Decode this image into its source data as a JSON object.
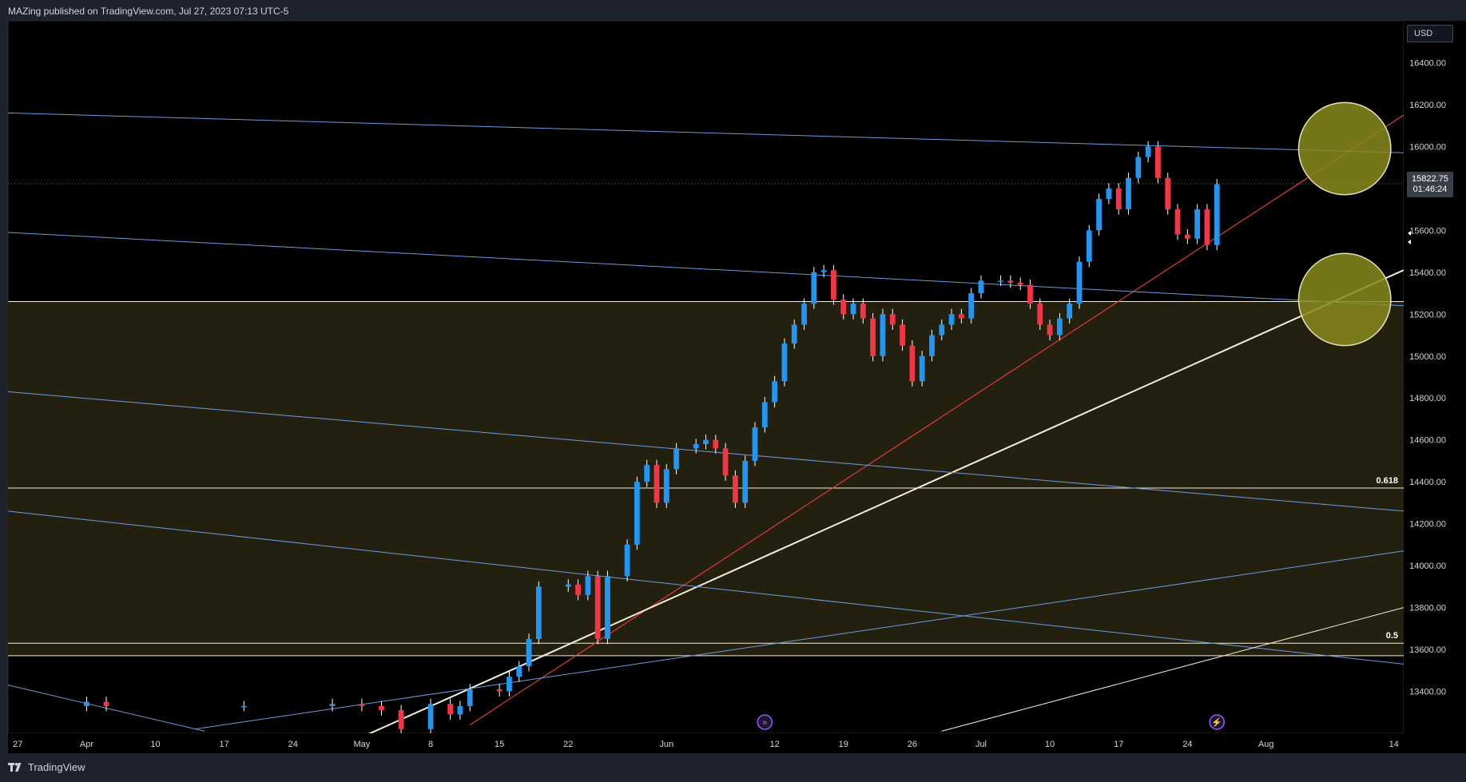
{
  "header": {
    "title": "MAZing published on TradingView.com, Jul 27, 2023 07:13 UTC-5"
  },
  "footer": {
    "brand": "TradingView"
  },
  "price_scale": {
    "currency": "USD",
    "last_price": "15822.75",
    "countdown": "01:46:24"
  },
  "colors": {
    "background": "#000000",
    "zone_fill": "#242010",
    "up_candle": "#2196f3",
    "down_candle": "#f23645",
    "channel_lines": "#6b9be0",
    "red_trendline": "#e03a3a",
    "white_trendline": "#f2eed8",
    "fib_lines": "#f2eed8",
    "circle_fill": "#8a8a1e"
  },
  "icons": [
    "tradingview-logo-icon",
    "forward-event-icon",
    "flash-event-icon"
  ],
  "chart_data": {
    "type": "candlestick",
    "title": "",
    "currency": "USD",
    "ylim": [
      13200,
      16600
    ],
    "y_ticks": [
      13400,
      13600,
      13800,
      14000,
      14200,
      14400,
      14600,
      14800,
      15000,
      15200,
      15400,
      15600,
      15800,
      16000,
      16200,
      16400
    ],
    "y_tick_labels": [
      "13400.00",
      "13600.00",
      "13800.00",
      "14000.00",
      "14200.00",
      "14400.00",
      "14600.00",
      "14800.00",
      "15000.00",
      "15200.00",
      "15400.00",
      "15600.00",
      "15800.00",
      "16000.00",
      "16200.00",
      "16400.00"
    ],
    "x_range": [
      "2023-03-26",
      "2023-08-15"
    ],
    "x_ticks": [
      {
        "date": "2023-03-27",
        "label": "27"
      },
      {
        "date": "2023-04-03",
        "label": "Apr"
      },
      {
        "date": "2023-04-10",
        "label": "10"
      },
      {
        "date": "2023-04-17",
        "label": "17"
      },
      {
        "date": "2023-04-24",
        "label": "24"
      },
      {
        "date": "2023-05-01",
        "label": "May"
      },
      {
        "date": "2023-05-08",
        "label": "8"
      },
      {
        "date": "2023-05-15",
        "label": "15"
      },
      {
        "date": "2023-05-22",
        "label": "22"
      },
      {
        "date": "2023-06-01",
        "label": "Jun"
      },
      {
        "date": "2023-06-12",
        "label": "12"
      },
      {
        "date": "2023-06-19",
        "label": "19"
      },
      {
        "date": "2023-06-26",
        "label": "26"
      },
      {
        "date": "2023-07-03",
        "label": "Jul"
      },
      {
        "date": "2023-07-10",
        "label": "10"
      },
      {
        "date": "2023-07-17",
        "label": "17"
      },
      {
        "date": "2023-07-24",
        "label": "24"
      },
      {
        "date": "2023-08-01",
        "label": "Aug"
      },
      {
        "date": "2023-08-14",
        "label": "14"
      }
    ],
    "last_price": 15822.75,
    "zone": {
      "from": 13570,
      "to": 15260
    },
    "fib_levels": [
      {
        "label": "0.618",
        "price": 14370
      },
      {
        "label": "0.5",
        "price": 13630
      }
    ],
    "horizontal_levels": [
      15260,
      13570
    ],
    "series": [
      {
        "name": "",
        "points": [
          {
            "date": "2023-04-03",
            "close": 13350
          },
          {
            "date": "2023-04-05",
            "close": 13330
          },
          {
            "date": "2023-04-19",
            "close": 13330
          },
          {
            "date": "2023-04-28",
            "close": 13340
          },
          {
            "date": "2023-05-01",
            "close": 13330
          },
          {
            "date": "2023-05-03",
            "close": 13310
          },
          {
            "date": "2023-05-05",
            "close": 13220
          },
          {
            "date": "2023-05-08",
            "close": 13340
          },
          {
            "date": "2023-05-10",
            "close": 13290
          },
          {
            "date": "2023-05-11",
            "close": 13330
          },
          {
            "date": "2023-05-12",
            "close": 13410
          },
          {
            "date": "2023-05-15",
            "close": 13400
          },
          {
            "date": "2023-05-16",
            "close": 13470
          },
          {
            "date": "2023-05-17",
            "close": 13520
          },
          {
            "date": "2023-05-18",
            "close": 13650
          },
          {
            "date": "2023-05-19",
            "close": 13900
          },
          {
            "date": "2023-05-22",
            "close": 13910
          },
          {
            "date": "2023-05-23",
            "close": 13860
          },
          {
            "date": "2023-05-24",
            "close": 13950
          },
          {
            "date": "2023-05-25",
            "close": 13650
          },
          {
            "date": "2023-05-26",
            "close": 13950
          },
          {
            "date": "2023-05-28",
            "close": 14100
          },
          {
            "date": "2023-05-29",
            "close": 14400
          },
          {
            "date": "2023-05-30",
            "close": 14480
          },
          {
            "date": "2023-05-31",
            "close": 14300
          },
          {
            "date": "2023-06-01",
            "close": 14460
          },
          {
            "date": "2023-06-02",
            "close": 14560
          },
          {
            "date": "2023-06-04",
            "close": 14580
          },
          {
            "date": "2023-06-05",
            "close": 14600
          },
          {
            "date": "2023-06-06",
            "close": 14560
          },
          {
            "date": "2023-06-07",
            "close": 14430
          },
          {
            "date": "2023-06-08",
            "close": 14300
          },
          {
            "date": "2023-06-09",
            "close": 14500
          },
          {
            "date": "2023-06-10",
            "close": 14660
          },
          {
            "date": "2023-06-11",
            "close": 14780
          },
          {
            "date": "2023-06-12",
            "close": 14880
          },
          {
            "date": "2023-06-13",
            "close": 15060
          },
          {
            "date": "2023-06-14",
            "close": 15150
          },
          {
            "date": "2023-06-15",
            "close": 15250
          },
          {
            "date": "2023-06-16",
            "close": 15400
          },
          {
            "date": "2023-06-17",
            "close": 15410
          },
          {
            "date": "2023-06-18",
            "close": 15270
          },
          {
            "date": "2023-06-19",
            "close": 15200
          },
          {
            "date": "2023-06-20",
            "close": 15250
          },
          {
            "date": "2023-06-21",
            "close": 15180
          },
          {
            "date": "2023-06-22",
            "close": 15000
          },
          {
            "date": "2023-06-23",
            "close": 15200
          },
          {
            "date": "2023-06-24",
            "close": 15150
          },
          {
            "date": "2023-06-25",
            "close": 15050
          },
          {
            "date": "2023-06-26",
            "close": 14880
          },
          {
            "date": "2023-06-27",
            "close": 15000
          },
          {
            "date": "2023-06-28",
            "close": 15100
          },
          {
            "date": "2023-06-29",
            "close": 15150
          },
          {
            "date": "2023-06-30",
            "close": 15200
          },
          {
            "date": "2023-07-01",
            "close": 15180
          },
          {
            "date": "2023-07-02",
            "close": 15300
          },
          {
            "date": "2023-07-03",
            "close": 15360
          },
          {
            "date": "2023-07-05",
            "close": 15360
          },
          {
            "date": "2023-07-06",
            "close": 15350
          },
          {
            "date": "2023-07-07",
            "close": 15340
          },
          {
            "date": "2023-07-08",
            "close": 15250
          },
          {
            "date": "2023-07-09",
            "close": 15150
          },
          {
            "date": "2023-07-10",
            "close": 15100
          },
          {
            "date": "2023-07-11",
            "close": 15180
          },
          {
            "date": "2023-07-12",
            "close": 15250
          },
          {
            "date": "2023-07-13",
            "close": 15450
          },
          {
            "date": "2023-07-14",
            "close": 15600
          },
          {
            "date": "2023-07-15",
            "close": 15750
          },
          {
            "date": "2023-07-16",
            "close": 15800
          },
          {
            "date": "2023-07-17",
            "close": 15700
          },
          {
            "date": "2023-07-18",
            "close": 15850
          },
          {
            "date": "2023-07-19",
            "close": 15950
          },
          {
            "date": "2023-07-20",
            "close": 16000
          },
          {
            "date": "2023-07-21",
            "close": 15850
          },
          {
            "date": "2023-07-22",
            "close": 15700
          },
          {
            "date": "2023-07-23",
            "close": 15580
          },
          {
            "date": "2023-07-24",
            "close": 15560
          },
          {
            "date": "2023-07-25",
            "close": 15700
          },
          {
            "date": "2023-07-26",
            "close": 15530
          },
          {
            "date": "2023-07-27",
            "close": 15820
          }
        ]
      }
    ],
    "trendlines": [
      {
        "style": "red",
        "from": {
          "date": "2023-05-12",
          "price": 13240
        },
        "to": {
          "date": "2023-08-15",
          "price": 16150
        }
      },
      {
        "style": "white",
        "from": {
          "date": "2023-04-29",
          "price": 13140
        },
        "to": {
          "date": "2023-08-15",
          "price": 15410
        }
      },
      {
        "style": "channel",
        "from": {
          "date": "2023-03-26",
          "price": 16160
        },
        "to": {
          "date": "2023-08-15",
          "price": 15970
        }
      },
      {
        "style": "channel",
        "from": {
          "date": "2023-03-26",
          "price": 15590
        },
        "to": {
          "date": "2023-08-15",
          "price": 15240
        }
      },
      {
        "style": "channel",
        "from": {
          "date": "2023-03-26",
          "price": 14830
        },
        "to": {
          "date": "2023-08-15",
          "price": 14260
        }
      },
      {
        "style": "channel",
        "from": {
          "date": "2023-03-26",
          "price": 14260
        },
        "to": {
          "date": "2023-08-15",
          "price": 13530
        }
      },
      {
        "style": "channel",
        "from": {
          "date": "2023-03-26",
          "price": 13430
        },
        "to": {
          "date": "2023-04-15",
          "price": 13210
        }
      },
      {
        "style": "channel",
        "from": {
          "date": "2023-04-14",
          "price": 13220
        },
        "to": {
          "date": "2023-08-15",
          "price": 14070
        }
      },
      {
        "style": "fib",
        "from": {
          "date": "2023-06-29",
          "price": 13210
        },
        "to": {
          "date": "2023-08-15",
          "price": 13800
        }
      }
    ],
    "circles": [
      {
        "date": "2023-08-09",
        "price": 15990
      },
      {
        "date": "2023-08-09",
        "price": 15270
      }
    ],
    "events": [
      {
        "date": "2023-06-11",
        "icon": "forward-event-icon"
      },
      {
        "date": "2023-07-27",
        "icon": "flash-event-icon"
      }
    ]
  }
}
